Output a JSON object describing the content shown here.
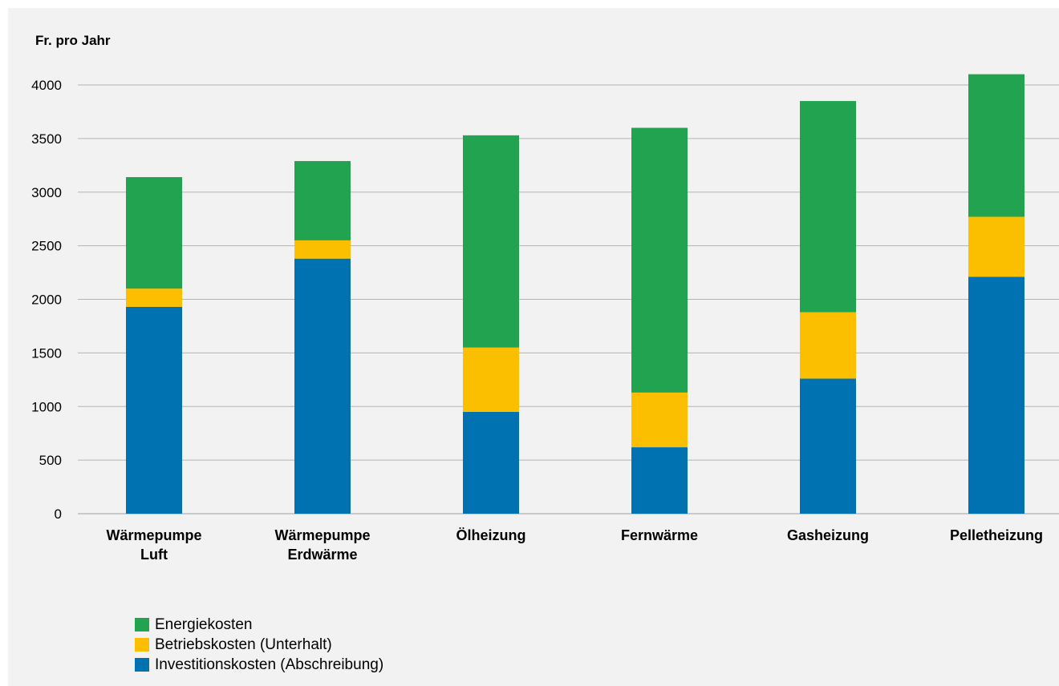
{
  "chart_data": {
    "type": "bar",
    "stacked": true,
    "title": "Fr. pro Jahr",
    "categories": [
      [
        "Wärmepumpe",
        "Luft"
      ],
      [
        "Wärmepumpe",
        "Erdwärme"
      ],
      [
        "Ölheizung"
      ],
      [
        "Fernwärme"
      ],
      [
        "Gasheizung"
      ],
      [
        "Pelletheizung"
      ]
    ],
    "series": [
      {
        "name": "Investitionskosten (Abschreibung)",
        "color": "#0072b2",
        "values": [
          1930,
          2380,
          950,
          620,
          1260,
          2210
        ]
      },
      {
        "name": "Betriebskosten (Unterhalt)",
        "color": "#fbbf00",
        "values": [
          170,
          170,
          600,
          510,
          620,
          560
        ]
      },
      {
        "name": "Energiekosten",
        "color": "#22a34f",
        "values": [
          1040,
          740,
          1980,
          2470,
          1970,
          1330
        ]
      }
    ],
    "legend_order": [
      2,
      1,
      0
    ],
    "ylim": [
      0,
      4000
    ],
    "yticks": [
      0,
      500,
      1000,
      1500,
      2000,
      2500,
      3000,
      3500,
      4000
    ],
    "grid": true,
    "legend_position": "bottom-left"
  }
}
